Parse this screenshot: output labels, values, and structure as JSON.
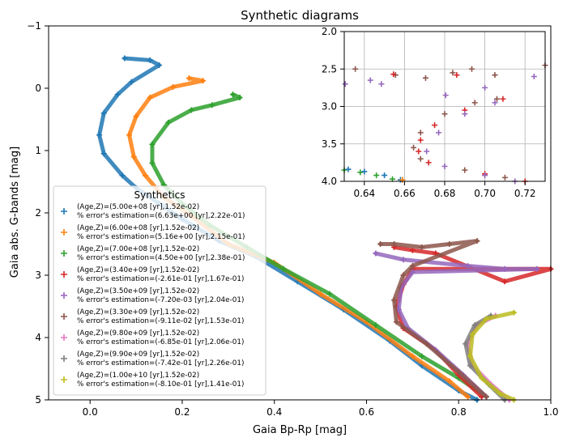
{
  "chart_data": [
    {
      "type": "scatter",
      "title": "Synthetic diagrams",
      "xlabel": "Gaia Bp-Rp [mag]",
      "ylabel": "Gaia abs. G-bands [mag]",
      "xlim": [
        -0.09,
        1.0
      ],
      "ylim": [
        5,
        -1
      ],
      "y_inverted": true,
      "x_ticks": [
        "0.0",
        "0.2",
        "0.4",
        "0.6",
        "0.8",
        "1.0"
      ],
      "x_tick_values": [
        0.0,
        0.2,
        0.4,
        0.6,
        0.8,
        1.0
      ],
      "y_ticks": [
        "−1",
        "0",
        "1",
        "2",
        "3",
        "4",
        "5"
      ],
      "y_tick_values": [
        -1,
        0,
        1,
        2,
        3,
        4,
        5
      ],
      "grid": false,
      "legend_placement": "lower-left",
      "legend_title": "Synthetics",
      "marker": "plus",
      "series": [
        {
          "name": "(Age,Z)=(5.00e+08 [yr],1.52e-02)",
          "error_text": " % error's estimation=(6.63e+00 [yr],2.22e-01)",
          "color": "#1f77b4",
          "points": [
            [
              0.075,
              -0.48
            ],
            [
              0.13,
              -0.45
            ],
            [
              0.15,
              -0.37
            ],
            [
              0.09,
              -0.1
            ],
            [
              0.06,
              0.1
            ],
            [
              0.03,
              0.4
            ],
            [
              0.02,
              0.75
            ],
            [
              0.03,
              1.05
            ],
            [
              0.07,
              1.4
            ],
            [
              0.1,
              1.6
            ],
            [
              0.15,
              1.85
            ],
            [
              0.2,
              2.1
            ],
            [
              0.28,
              2.45
            ],
            [
              0.36,
              2.7
            ],
            [
              0.45,
              3.1
            ],
            [
              0.55,
              3.55
            ],
            [
              0.65,
              4.05
            ],
            [
              0.72,
              4.45
            ],
            [
              0.8,
              4.85
            ],
            [
              0.84,
              5.0
            ]
          ]
        },
        {
          "name": "(Age,Z)=(6.00e+08 [yr],1.52e-02)",
          "error_text": " % error's estimation=(5.16e+00 [yr],2.15e-01)",
          "color": "#ff7f0e",
          "points": [
            [
              0.215,
              -0.16
            ],
            [
              0.245,
              -0.12
            ],
            [
              0.18,
              -0.02
            ],
            [
              0.13,
              0.15
            ],
            [
              0.1,
              0.45
            ],
            [
              0.085,
              0.75
            ],
            [
              0.095,
              1.1
            ],
            [
              0.12,
              1.4
            ],
            [
              0.16,
              1.75
            ],
            [
              0.22,
              2.05
            ],
            [
              0.3,
              2.5
            ],
            [
              0.4,
              2.8
            ],
            [
              0.5,
              3.3
            ],
            [
              0.6,
              3.75
            ],
            [
              0.7,
              4.3
            ],
            [
              0.78,
              4.7
            ],
            [
              0.82,
              4.95
            ]
          ]
        },
        {
          "name": "(Age,Z)=(7.00e+08 [yr],1.52e-02)",
          "error_text": " % error's estimation=(4.50e+00 [yr],2.38e-01)",
          "color": "#2ca02c",
          "points": [
            [
              0.31,
              0.1
            ],
            [
              0.325,
              0.15
            ],
            [
              0.265,
              0.27
            ],
            [
              0.22,
              0.35
            ],
            [
              0.17,
              0.55
            ],
            [
              0.135,
              0.9
            ],
            [
              0.135,
              1.2
            ],
            [
              0.16,
              1.55
            ],
            [
              0.2,
              1.85
            ],
            [
              0.26,
              2.2
            ],
            [
              0.34,
              2.55
            ],
            [
              0.42,
              2.9
            ],
            [
              0.52,
              3.3
            ],
            [
              0.62,
              3.8
            ],
            [
              0.72,
              4.3
            ],
            [
              0.8,
              4.65
            ],
            [
              0.86,
              4.95
            ]
          ]
        },
        {
          "name": "(Age,Z)=(3.40e+09 [yr],1.52e-02)",
          "error_text": " % error's estimation=(-2.61e-01 [yr],1.67e-01)",
          "color": "#d62728",
          "points": [
            [
              0.66,
              2.55
            ],
            [
              0.7,
              2.6
            ],
            [
              0.75,
              2.65
            ],
            [
              0.9,
              3.1
            ],
            [
              1.0,
              2.9
            ],
            [
              0.7,
              2.9
            ],
            [
              0.68,
              3.15
            ],
            [
              0.665,
              3.5
            ],
            [
              0.68,
              3.85
            ],
            [
              0.75,
              4.2
            ],
            [
              0.8,
              4.6
            ],
            [
              0.85,
              4.95
            ]
          ]
        },
        {
          "name": "(Age,Z)=(3.50e+09 [yr],1.52e-02)",
          "error_text": " % error's estimation=(-7.20e-03 [yr],2.04e-01)",
          "color": "#9467bd",
          "points": [
            [
              0.62,
              2.65
            ],
            [
              0.68,
              2.75
            ],
            [
              0.82,
              2.85
            ],
            [
              0.9,
              2.9
            ],
            [
              0.97,
              2.9
            ],
            [
              0.7,
              2.95
            ],
            [
              0.675,
              3.2
            ],
            [
              0.67,
              3.55
            ],
            [
              0.69,
              3.85
            ],
            [
              0.75,
              4.2
            ],
            [
              0.81,
              4.6
            ],
            [
              0.86,
              4.95
            ]
          ]
        },
        {
          "name": "(Age,Z)=(3.30e+09 [yr],1.52e-02)",
          "error_text": " % error's estimation=(-9.11e-02 [yr],1.53e-01)",
          "color": "#8c564b",
          "points": [
            [
              0.63,
              2.5
            ],
            [
              0.66,
              2.5
            ],
            [
              0.72,
              2.55
            ],
            [
              0.78,
              2.5
            ],
            [
              0.84,
              2.45
            ],
            [
              0.7,
              2.85
            ],
            [
              0.68,
              3.0
            ],
            [
              0.66,
              3.4
            ],
            [
              0.665,
              3.75
            ],
            [
              0.73,
              4.1
            ],
            [
              0.8,
              4.55
            ],
            [
              0.86,
              4.95
            ]
          ]
        },
        {
          "name": "(Age,Z)=(9.80e+09 [yr],1.52e-02)",
          "error_text": " % error's estimation=(-6.85e-01 [yr],2.06e-01)",
          "color": "#e377c2",
          "points": [
            [
              0.88,
              3.65
            ],
            [
              0.84,
              3.8
            ],
            [
              0.82,
              4.1
            ],
            [
              0.83,
              4.45
            ],
            [
              0.87,
              4.75
            ],
            [
              0.91,
              5.0
            ]
          ]
        },
        {
          "name": "(Age,Z)=(9.90e+09 [yr],1.52e-02)",
          "error_text": " % error's estimation=(-7.42e-01 [yr],2.26e-01)",
          "color": "#7f7f7f",
          "points": [
            [
              0.87,
              3.65
            ],
            [
              0.835,
              3.8
            ],
            [
              0.815,
              4.1
            ],
            [
              0.825,
              4.45
            ],
            [
              0.865,
              4.75
            ],
            [
              0.9,
              5.0
            ]
          ]
        },
        {
          "name": "(Age,Z)=(1.00e+10 [yr],1.52e-02)",
          "error_text": " % error's estimation=(-8.10e-01 [yr],1.41e-01)",
          "color": "#bcbd22",
          "points": [
            [
              0.92,
              3.6
            ],
            [
              0.86,
              3.7
            ],
            [
              0.83,
              3.95
            ],
            [
              0.825,
              4.3
            ],
            [
              0.85,
              4.65
            ],
            [
              0.89,
              4.9
            ],
            [
              0.92,
              5.0
            ]
          ]
        }
      ]
    },
    {
      "type": "scatter",
      "title": "",
      "xlabel": "",
      "ylabel": "",
      "xlim": [
        0.63,
        0.73
      ],
      "ylim": [
        4.0,
        2.0
      ],
      "y_inverted": true,
      "x_ticks": [
        "0.64",
        "0.66",
        "0.68",
        "0.70",
        "0.72"
      ],
      "x_tick_values": [
        0.64,
        0.66,
        0.68,
        0.7,
        0.72
      ],
      "y_ticks": [
        "2.0",
        "2.5",
        "3.0",
        "3.5",
        "4.0"
      ],
      "y_tick_values": [
        2.0,
        2.5,
        3.0,
        3.5,
        4.0
      ],
      "grid": true,
      "legend_placement": "none",
      "marker": "plus",
      "series": [
        {
          "color": "#8c564b",
          "points": [
            [
              0.6355,
              2.5
            ],
            [
              0.6555,
              2.58
            ],
            [
              0.6705,
              2.62
            ],
            [
              0.684,
              2.55
            ],
            [
              0.6935,
              2.5
            ],
            [
              0.705,
              2.58
            ],
            [
              0.73,
              2.45
            ],
            [
              0.706,
              2.9
            ],
            [
              0.695,
              2.95
            ],
            [
              0.68,
              3.1
            ],
            [
              0.668,
              3.35
            ],
            [
              0.6645,
              3.55
            ],
            [
              0.668,
              3.7
            ],
            [
              0.69,
              3.85
            ],
            [
              0.71,
              3.95
            ]
          ]
        },
        {
          "color": "#d62728",
          "points": [
            [
              0.6545,
              2.57
            ],
            [
              0.686,
              2.58
            ],
            [
              0.709,
              2.9
            ],
            [
              0.69,
              3.05
            ],
            [
              0.675,
              3.25
            ],
            [
              0.668,
              3.45
            ],
            [
              0.667,
              3.6
            ],
            [
              0.672,
              3.75
            ],
            [
              0.7,
              3.9
            ],
            [
              0.72,
              4.0
            ]
          ]
        },
        {
          "color": "#9467bd",
          "points": [
            [
              0.6305,
              2.7
            ],
            [
              0.643,
              2.65
            ],
            [
              0.6485,
              2.7
            ],
            [
              0.6805,
              2.85
            ],
            [
              0.7,
              2.75
            ],
            [
              0.7245,
              2.6
            ],
            [
              0.705,
              2.95
            ],
            [
              0.69,
              3.1
            ],
            [
              0.677,
              3.35
            ],
            [
              0.671,
              3.6
            ],
            [
              0.68,
              3.8
            ],
            [
              0.7,
              3.92
            ],
            [
              0.715,
              4.0
            ]
          ]
        },
        {
          "color": "#2ca02c",
          "points": [
            [
              0.63,
              3.85
            ],
            [
              0.638,
              3.88
            ],
            [
              0.646,
              3.92
            ],
            [
              0.654,
              3.97
            ]
          ]
        },
        {
          "color": "#1f77b4",
          "points": [
            [
              0.632,
              3.84
            ],
            [
              0.64,
              3.87
            ],
            [
              0.65,
              3.92
            ],
            [
              0.658,
              3.98
            ]
          ]
        },
        {
          "color": "#ff7f0e",
          "points": [
            [
              0.659,
              3.98
            ]
          ]
        }
      ]
    }
  ]
}
